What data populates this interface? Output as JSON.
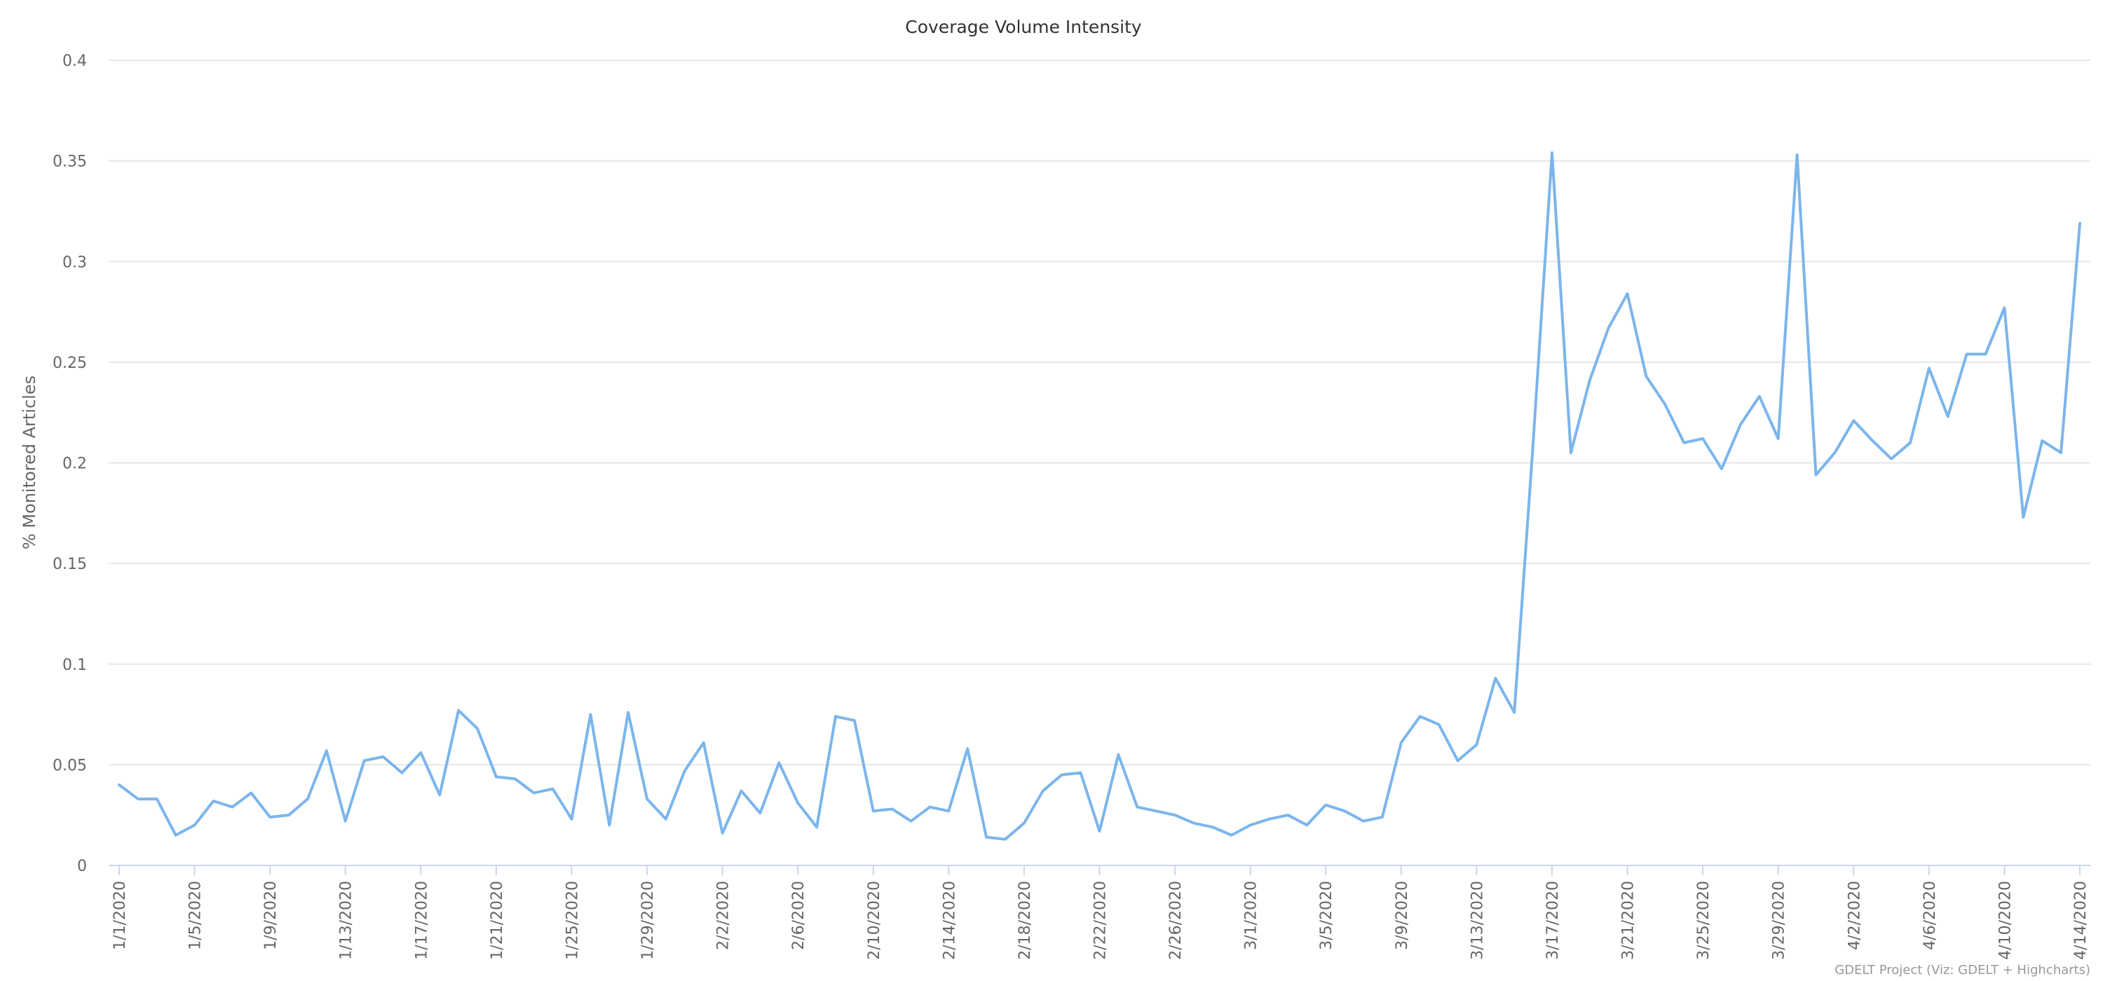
{
  "chart_data": {
    "type": "line",
    "title": "Coverage Volume Intensity",
    "xlabel": "",
    "ylabel": "% Monitored Articles",
    "ylim": [
      0,
      0.4
    ],
    "yticks": [
      "0",
      "0.05",
      "0.1",
      "0.15",
      "0.2",
      "0.25",
      "0.3",
      "0.35",
      "0.4"
    ],
    "xtick_labels": [
      "1/1/2020",
      "1/5/2020",
      "1/9/2020",
      "1/13/2020",
      "1/17/2020",
      "1/21/2020",
      "1/25/2020",
      "1/29/2020",
      "2/2/2020",
      "2/6/2020",
      "2/10/2020",
      "2/14/2020",
      "2/18/2020",
      "2/22/2020",
      "2/26/2020",
      "3/1/2020",
      "3/5/2020",
      "3/9/2020",
      "3/13/2020",
      "3/17/2020",
      "3/21/2020",
      "3/25/2020",
      "3/29/2020",
      "4/2/2020",
      "4/6/2020",
      "4/10/2020",
      "4/14/2020"
    ],
    "grid": true,
    "legend": "none",
    "color": "#7cb5ec",
    "x": [
      "1/1/2020",
      "1/2/2020",
      "1/3/2020",
      "1/4/2020",
      "1/5/2020",
      "1/6/2020",
      "1/7/2020",
      "1/8/2020",
      "1/9/2020",
      "1/10/2020",
      "1/11/2020",
      "1/12/2020",
      "1/13/2020",
      "1/14/2020",
      "1/15/2020",
      "1/16/2020",
      "1/17/2020",
      "1/18/2020",
      "1/19/2020",
      "1/20/2020",
      "1/21/2020",
      "1/22/2020",
      "1/23/2020",
      "1/24/2020",
      "1/25/2020",
      "1/26/2020",
      "1/27/2020",
      "1/28/2020",
      "1/29/2020",
      "1/30/2020",
      "1/31/2020",
      "2/1/2020",
      "2/2/2020",
      "2/3/2020",
      "2/4/2020",
      "2/5/2020",
      "2/6/2020",
      "2/7/2020",
      "2/8/2020",
      "2/9/2020",
      "2/10/2020",
      "2/11/2020",
      "2/12/2020",
      "2/13/2020",
      "2/14/2020",
      "2/15/2020",
      "2/16/2020",
      "2/17/2020",
      "2/18/2020",
      "2/19/2020",
      "2/20/2020",
      "2/21/2020",
      "2/22/2020",
      "2/23/2020",
      "2/24/2020",
      "2/25/2020",
      "2/26/2020",
      "2/27/2020",
      "2/28/2020",
      "2/29/2020",
      "3/1/2020",
      "3/2/2020",
      "3/3/2020",
      "3/4/2020",
      "3/5/2020",
      "3/6/2020",
      "3/7/2020",
      "3/8/2020",
      "3/9/2020",
      "3/10/2020",
      "3/11/2020",
      "3/12/2020",
      "3/13/2020",
      "3/14/2020",
      "3/15/2020",
      "3/16/2020",
      "3/17/2020",
      "3/18/2020",
      "3/19/2020",
      "3/20/2020",
      "3/21/2020",
      "3/22/2020",
      "3/23/2020",
      "3/24/2020",
      "3/25/2020",
      "3/26/2020",
      "3/27/2020",
      "3/28/2020",
      "3/29/2020",
      "3/30/2020",
      "3/31/2020",
      "4/1/2020",
      "4/2/2020",
      "4/3/2020",
      "4/4/2020",
      "4/5/2020",
      "4/6/2020",
      "4/7/2020",
      "4/8/2020",
      "4/9/2020",
      "4/10/2020",
      "4/11/2020",
      "4/12/2020",
      "4/13/2020",
      "4/14/2020"
    ],
    "values": [
      0.04,
      0.033,
      0.033,
      0.015,
      0.02,
      0.032,
      0.029,
      0.036,
      0.024,
      0.025,
      0.033,
      0.057,
      0.022,
      0.052,
      0.054,
      0.046,
      0.056,
      0.035,
      0.077,
      0.068,
      0.044,
      0.043,
      0.036,
      0.038,
      0.023,
      0.075,
      0.02,
      0.076,
      0.033,
      0.023,
      0.047,
      0.061,
      0.016,
      0.037,
      0.026,
      0.051,
      0.031,
      0.019,
      0.074,
      0.072,
      0.027,
      0.028,
      0.022,
      0.029,
      0.027,
      0.058,
      0.014,
      0.013,
      0.021,
      0.037,
      0.045,
      0.046,
      0.017,
      0.055,
      0.029,
      0.027,
      0.025,
      0.021,
      0.019,
      0.015,
      0.02,
      0.023,
      0.025,
      0.02,
      0.03,
      0.027,
      0.022,
      0.024,
      0.061,
      0.074,
      0.07,
      0.052,
      0.06,
      0.093,
      0.076,
      0.21,
      0.354,
      0.205,
      0.241,
      0.267,
      0.284,
      0.243,
      0.229,
      0.21,
      0.212,
      0.197,
      0.219,
      0.233,
      0.212,
      0.353,
      0.194,
      0.205,
      0.221,
      0.211,
      0.202,
      0.21,
      0.247,
      0.223,
      0.254,
      0.254,
      0.277,
      0.173,
      0.211,
      0.205,
      0.319
    ]
  },
  "credit": "GDELT Project (Viz: GDELT + Highcharts)"
}
